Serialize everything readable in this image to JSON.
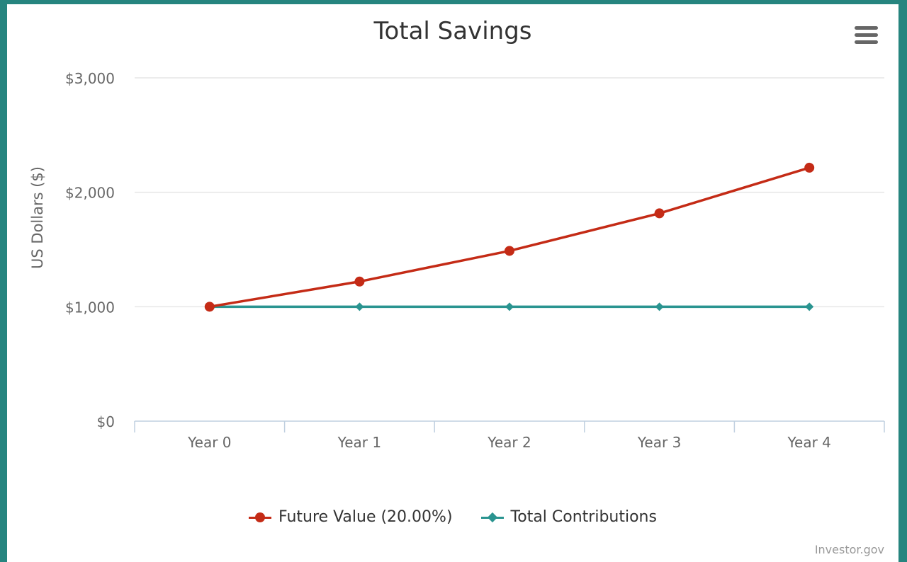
{
  "chart_data": {
    "type": "line",
    "title": "Total Savings",
    "ylabel": "US Dollars ($)",
    "xlabel": "",
    "categories": [
      "Year 0",
      "Year 1",
      "Year 2",
      "Year 3",
      "Year 4"
    ],
    "ylim": [
      0,
      3000
    ],
    "yticks": [
      0,
      1000,
      2000,
      3000
    ],
    "ytick_labels": [
      "$0",
      "$1,000",
      "$2,000",
      "$3,000"
    ],
    "grid": true,
    "legend_position": "bottom-center",
    "series": [
      {
        "name": "Future Value (20.00%)",
        "values": [
          1000,
          1220,
          1488,
          1816,
          2215
        ],
        "color": "#c42b16",
        "marker": "circle"
      },
      {
        "name": "Total Contributions",
        "values": [
          1000,
          1000,
          1000,
          1000,
          1000
        ],
        "color": "#2a9490",
        "marker": "diamond"
      }
    ]
  },
  "credits": "Investor.gov",
  "menu_icon": "hamburger-menu-icon"
}
